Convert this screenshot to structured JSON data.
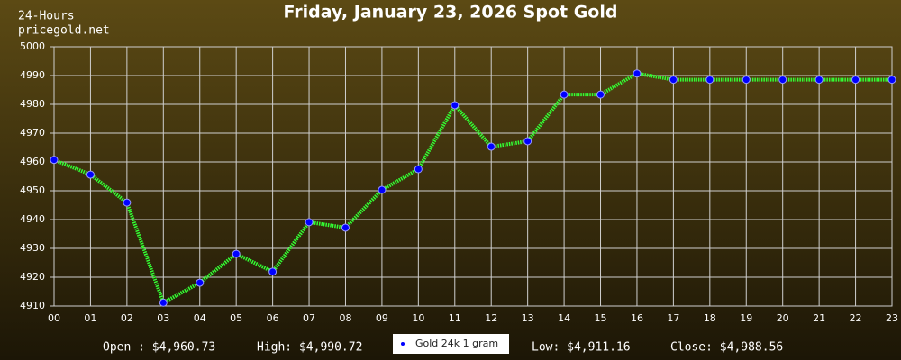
{
  "chart_data": {
    "type": "line",
    "title": "Friday, January 23, 2026 Spot Gold",
    "annotations": [
      "24-Hours",
      "pricegold.net"
    ],
    "stats": [
      "Open : $4,960.73",
      "High: $4,990.72",
      "Low: $4,911.16",
      "Close: $4,988.56"
    ],
    "categories": [
      "00",
      "01",
      "02",
      "03",
      "04",
      "05",
      "06",
      "07",
      "08",
      "09",
      "10",
      "11",
      "12",
      "13",
      "14",
      "15",
      "16",
      "17",
      "18",
      "19",
      "20",
      "21",
      "22",
      "23"
    ],
    "series": [
      {
        "name": "Gold 24k 1 gram",
        "color": "#33ff33",
        "marker_color": "#0000ff",
        "values": [
          4960.73,
          4955.6,
          4945.9,
          4911.16,
          4918.1,
          4928.1,
          4921.9,
          4939.1,
          4937.2,
          4950.3,
          4957.5,
          4979.7,
          4965.3,
          4967.2,
          4983.4,
          4983.4,
          4990.72,
          4988.56,
          4988.56,
          4988.56,
          4988.56,
          4988.56,
          4988.56,
          4988.56
        ]
      }
    ],
    "ylim": [
      4910,
      5000
    ],
    "yticks": [
      4910,
      4920,
      4930,
      4940,
      4950,
      4960,
      4970,
      4980,
      4990,
      5000
    ],
    "grid": true
  }
}
